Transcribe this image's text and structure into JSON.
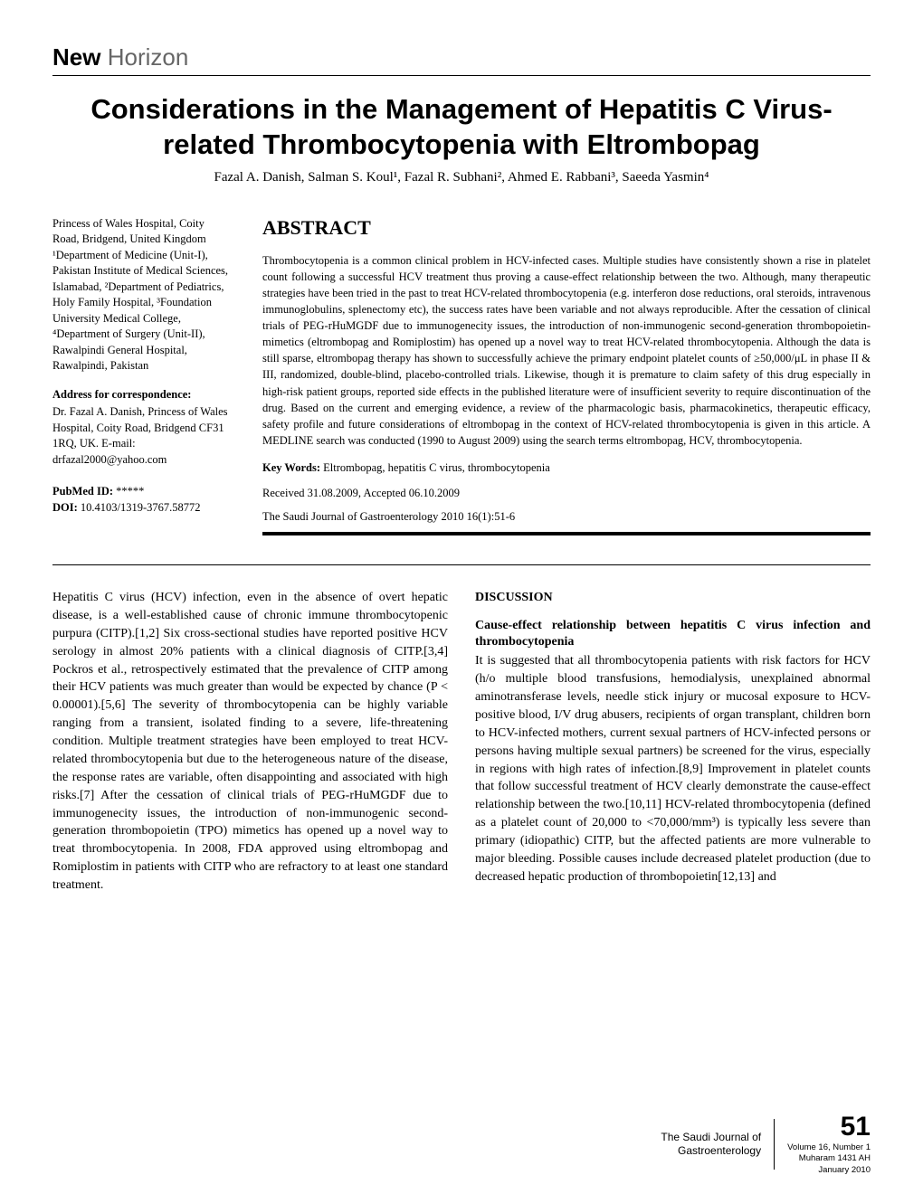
{
  "section": {
    "bold": "New",
    "light": "Horizon"
  },
  "title": "Considerations in the Management of Hepatitis C Virus-related Thrombocytopenia with Eltrombopag",
  "authors": "Fazal A. Danish, Salman S. Koul¹, Fazal R. Subhani², Ahmed E. Rabbani³, Saeeda Yasmin⁴",
  "sidebar": {
    "affiliations": "Princess of Wales Hospital, Coity Road, Bridgend, United Kingdom ¹Department of Medicine (Unit-I), Pakistan Institute of Medical Sciences, Islamabad, ²Department of Pediatrics, Holy Family Hospital, ³Foundation University Medical College, ⁴Department of Surgery (Unit-II), Rawalpindi General Hospital, Rawalpindi, Pakistan",
    "corr_head": "Address for correspondence:",
    "corr": "Dr. Fazal A. Danish, Princess of Wales Hospital, Coity Road, Bridgend CF31 1RQ, UK. E-mail: drfazal2000@yahoo.com",
    "pubmed_label": "PubMed ID:",
    "pubmed_val": " *****",
    "doi_label": "DOI:",
    "doi_val": " 10.4103/1319-3767.58772"
  },
  "abstract": {
    "heading": "ABSTRACT",
    "text": "Thrombocytopenia is a common clinical problem in HCV-infected cases. Multiple studies have consistently shown a rise in platelet count following a successful HCV treatment thus proving a cause-effect relationship between the two. Although, many therapeutic strategies have been tried in the past to treat HCV-related thrombocytopenia (e.g. interferon dose reductions, oral steroids, intravenous immunoglobulins, splenectomy etc), the success rates have been variable and not always reproducible. After the cessation of clinical trials of PEG-rHuMGDF due to immunogenecity issues, the introduction of non-immunogenic second-generation thrombopoietin-mimetics (eltrombopag and Romiplostim) has opened up a novel way to treat HCV-related thrombocytopenia. Although the data is still sparse, eltrombopag therapy has shown to successfully achieve the primary endpoint platelet counts of ≥50,000/μL in phase II & III, randomized, double-blind, placebo-controlled trials. Likewise, though it is premature to claim safety of this drug especially in high-risk patient groups, reported side effects in the published literature were of insufficient severity to require discontinuation of the drug. Based on the current and emerging evidence, a review of the pharmacologic basis, pharmacokinetics, therapeutic efficacy, safety profile and future considerations of eltrombopag in the context of HCV-related thrombocytopenia is given in this article. A MEDLINE search was conducted (1990 to August 2009) using the search terms eltrombopag, HCV, thrombocytopenia.",
    "kw_label": "Key Words:",
    "kw_text": " Eltrombopag, hepatitis C virus, thrombocytopenia",
    "received": "Received 31.08.2009, Accepted 06.10.2009",
    "citation": "The Saudi Journal of Gastroenterology 2010 16(1):51-6"
  },
  "body": {
    "left": "Hepatitis C virus (HCV) infection, even in the absence of overt hepatic disease, is a well-established cause of chronic immune thrombocytopenic purpura (CITP).[1,2] Six cross-sectional studies have reported positive HCV serology in almost 20% patients with a clinical diagnosis of CITP.[3,4] Pockros et al., retrospectively estimated that the prevalence of CITP among their HCV patients was much greater than would be expected by chance (P < 0.00001).[5,6] The severity of thrombocytopenia can be highly variable ranging from a transient, isolated finding to a severe, life-threatening condition. Multiple treatment strategies have been employed to treat HCV-related thrombocytopenia but due to the heterogeneous nature of the disease, the response rates are variable, often disappointing and associated with high risks.[7] After the cessation of clinical trials of PEG-rHuMGDF due to immunogenecity issues, the introduction of non-immunogenic second-generation thrombopoietin (TPO) mimetics has opened up a novel way to treat thrombocytopenia. In 2008, FDA approved using eltrombopag and Romiplostim in patients with CITP who are refractory to at least one standard treatment.",
    "disc_head": "DISCUSSION",
    "sub_head": "Cause-effect relationship between hepatitis C virus infection and thrombocytopenia",
    "right": "It is suggested that all thrombocytopenia patients with risk factors for HCV (h/o multiple blood transfusions, hemodialysis, unexplained abnormal aminotransferase levels, needle stick injury or mucosal exposure to HCV-positive blood, I/V drug abusers, recipients of organ transplant, children born to HCV-infected mothers, current sexual partners of HCV-infected persons or persons having multiple sexual partners) be screened for the virus, especially in regions with high rates of infection.[8,9] Improvement in platelet counts that follow successful treatment of HCV clearly demonstrate the cause-effect relationship between the two.[10,11] HCV-related thrombocytopenia (defined as a platelet count of 20,000 to <70,000/mm³) is typically less severe than primary (idiopathic) CITP, but the affected patients are more vulnerable to major bleeding. Possible causes include decreased platelet production (due to decreased hepatic production of thrombopoietin[12,13] and"
  },
  "footer": {
    "journal_l1": "The Saudi Journal of",
    "journal_l2": "Gastroenterology",
    "page": "51",
    "issue_l1": "Volume 16, Number 1",
    "issue_l2": "Muharam 1431 AH",
    "issue_l3": "January 2010"
  }
}
